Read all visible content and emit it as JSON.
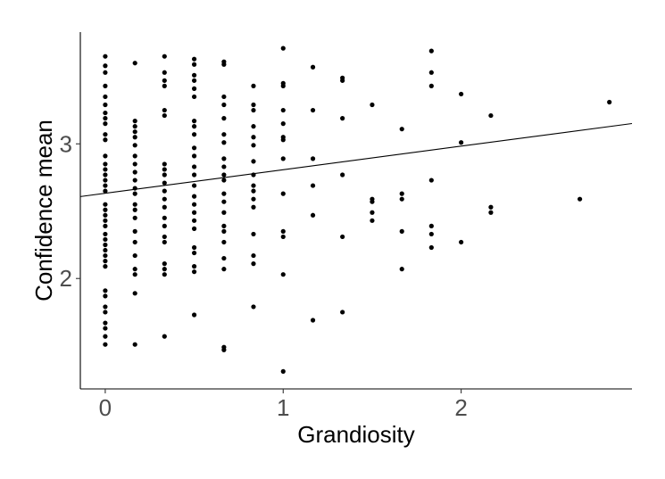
{
  "chart_data": {
    "type": "scatter",
    "title": "",
    "xlabel": "Grandiosity",
    "ylabel": "Confidence mean",
    "xlim": [
      -0.14,
      2.96
    ],
    "ylim": [
      1.18,
      3.83
    ],
    "x_ticks": [
      0,
      1,
      2
    ],
    "y_ticks": [
      2,
      3
    ],
    "x_tick_labels": [
      "0",
      "1",
      "2"
    ],
    "y_tick_labels": [
      "2",
      "3"
    ],
    "grid": false,
    "legend": "none",
    "point_color": "#000000",
    "trend_line": {
      "intercept": 2.633,
      "slope": 0.175,
      "color": "#000000"
    },
    "series": [
      {
        "values": [
          [
            0,
            3.65
          ],
          [
            0,
            3.58
          ],
          [
            0,
            3.53
          ],
          [
            0,
            3.43
          ],
          [
            0,
            3.35
          ],
          [
            0,
            3.29
          ],
          [
            0,
            3.23
          ],
          [
            0,
            3.19
          ],
          [
            0,
            3.15
          ],
          [
            0,
            3.07
          ],
          [
            0,
            3.03
          ],
          [
            0,
            2.91
          ],
          [
            0,
            2.85
          ],
          [
            0,
            2.81
          ],
          [
            0,
            2.77
          ],
          [
            0,
            2.73
          ],
          [
            0,
            2.69
          ],
          [
            0,
            2.65
          ],
          [
            0,
            2.55
          ],
          [
            0,
            2.51
          ],
          [
            0,
            2.47
          ],
          [
            0,
            2.43
          ],
          [
            0,
            2.39
          ],
          [
            0,
            2.33
          ],
          [
            0,
            2.29
          ],
          [
            0,
            2.25
          ],
          [
            0,
            2.21
          ],
          [
            0,
            2.17
          ],
          [
            0,
            2.13
          ],
          [
            0,
            2.09
          ],
          [
            0,
            1.91
          ],
          [
            0,
            1.87
          ],
          [
            0,
            1.79
          ],
          [
            0,
            1.75
          ],
          [
            0,
            1.67
          ],
          [
            0,
            1.63
          ],
          [
            0,
            1.57
          ],
          [
            0,
            1.51
          ],
          [
            0.167,
            3.6
          ],
          [
            0.167,
            3.17
          ],
          [
            0.167,
            3.13
          ],
          [
            0.167,
            3.09
          ],
          [
            0.167,
            3.05
          ],
          [
            0.167,
            2.99
          ],
          [
            0.167,
            2.91
          ],
          [
            0.167,
            2.85
          ],
          [
            0.167,
            2.79
          ],
          [
            0.167,
            2.73
          ],
          [
            0.167,
            2.67
          ],
          [
            0.167,
            2.63
          ],
          [
            0.167,
            2.55
          ],
          [
            0.167,
            2.51
          ],
          [
            0.167,
            2.45
          ],
          [
            0.167,
            2.35
          ],
          [
            0.167,
            2.27
          ],
          [
            0.167,
            2.17
          ],
          [
            0.167,
            2.07
          ],
          [
            0.167,
            2.03
          ],
          [
            0.167,
            1.89
          ],
          [
            0.167,
            1.51
          ],
          [
            0.333,
            3.65
          ],
          [
            0.333,
            3.53
          ],
          [
            0.333,
            3.47
          ],
          [
            0.333,
            3.43
          ],
          [
            0.333,
            3.25
          ],
          [
            0.333,
            3.21
          ],
          [
            0.333,
            2.85
          ],
          [
            0.333,
            2.81
          ],
          [
            0.333,
            2.77
          ],
          [
            0.333,
            2.71
          ],
          [
            0.333,
            2.65
          ],
          [
            0.333,
            2.59
          ],
          [
            0.333,
            2.53
          ],
          [
            0.333,
            2.45
          ],
          [
            0.333,
            2.39
          ],
          [
            0.333,
            2.31
          ],
          [
            0.333,
            2.27
          ],
          [
            0.333,
            2.11
          ],
          [
            0.333,
            2.07
          ],
          [
            0.333,
            2.03
          ],
          [
            0.333,
            1.57
          ],
          [
            0.5,
            3.63
          ],
          [
            0.5,
            3.59
          ],
          [
            0.5,
            3.51
          ],
          [
            0.5,
            3.47
          ],
          [
            0.5,
            3.41
          ],
          [
            0.5,
            3.35
          ],
          [
            0.5,
            3.17
          ],
          [
            0.5,
            3.13
          ],
          [
            0.5,
            3.07
          ],
          [
            0.5,
            2.97
          ],
          [
            0.5,
            2.91
          ],
          [
            0.5,
            2.83
          ],
          [
            0.5,
            2.77
          ],
          [
            0.5,
            2.69
          ],
          [
            0.5,
            2.61
          ],
          [
            0.5,
            2.55
          ],
          [
            0.5,
            2.49
          ],
          [
            0.5,
            2.43
          ],
          [
            0.5,
            2.37
          ],
          [
            0.5,
            2.23
          ],
          [
            0.5,
            2.19
          ],
          [
            0.5,
            2.09
          ],
          [
            0.5,
            2.05
          ],
          [
            0.5,
            1.73
          ],
          [
            0.667,
            3.61
          ],
          [
            0.667,
            3.59
          ],
          [
            0.667,
            3.35
          ],
          [
            0.667,
            3.29
          ],
          [
            0.667,
            3.19
          ],
          [
            0.667,
            3.07
          ],
          [
            0.667,
            3.01
          ],
          [
            0.667,
            2.89
          ],
          [
            0.667,
            2.83
          ],
          [
            0.667,
            2.77
          ],
          [
            0.667,
            2.73
          ],
          [
            0.667,
            2.63
          ],
          [
            0.667,
            2.57
          ],
          [
            0.667,
            2.49
          ],
          [
            0.667,
            2.39
          ],
          [
            0.667,
            2.35
          ],
          [
            0.667,
            2.27
          ],
          [
            0.667,
            2.15
          ],
          [
            0.667,
            2.07
          ],
          [
            0.667,
            1.49
          ],
          [
            0.667,
            1.47
          ],
          [
            0.833,
            3.43
          ],
          [
            0.833,
            3.29
          ],
          [
            0.833,
            3.25
          ],
          [
            0.833,
            3.13
          ],
          [
            0.833,
            3.05
          ],
          [
            0.833,
            2.99
          ],
          [
            0.833,
            2.87
          ],
          [
            0.833,
            2.77
          ],
          [
            0.833,
            2.69
          ],
          [
            0.833,
            2.65
          ],
          [
            0.833,
            2.59
          ],
          [
            0.833,
            2.53
          ],
          [
            0.833,
            2.33
          ],
          [
            0.833,
            2.17
          ],
          [
            0.833,
            2.11
          ],
          [
            0.833,
            1.79
          ],
          [
            1,
            3.71
          ],
          [
            1,
            3.45
          ],
          [
            1,
            3.43
          ],
          [
            1,
            3.25
          ],
          [
            1,
            3.15
          ],
          [
            1,
            3.05
          ],
          [
            1,
            3.03
          ],
          [
            1,
            2.89
          ],
          [
            1,
            2.63
          ],
          [
            1,
            2.35
          ],
          [
            1,
            2.31
          ],
          [
            1,
            2.03
          ],
          [
            1,
            1.31
          ],
          [
            1.167,
            3.57
          ],
          [
            1.167,
            3.25
          ],
          [
            1.167,
            2.89
          ],
          [
            1.167,
            2.69
          ],
          [
            1.167,
            2.47
          ],
          [
            1.167,
            1.69
          ],
          [
            1.333,
            3.49
          ],
          [
            1.333,
            3.47
          ],
          [
            1.333,
            3.19
          ],
          [
            1.333,
            2.77
          ],
          [
            1.333,
            2.31
          ],
          [
            1.333,
            1.75
          ],
          [
            1.5,
            3.29
          ],
          [
            1.5,
            2.59
          ],
          [
            1.5,
            2.57
          ],
          [
            1.5,
            2.49
          ],
          [
            1.5,
            2.43
          ],
          [
            1.667,
            3.11
          ],
          [
            1.667,
            2.63
          ],
          [
            1.667,
            2.59
          ],
          [
            1.667,
            2.35
          ],
          [
            1.667,
            2.07
          ],
          [
            1.833,
            3.69
          ],
          [
            1.833,
            3.53
          ],
          [
            1.833,
            3.43
          ],
          [
            1.833,
            2.73
          ],
          [
            1.833,
            2.39
          ],
          [
            1.833,
            2.33
          ],
          [
            1.833,
            2.23
          ],
          [
            2,
            3.37
          ],
          [
            2,
            3.01
          ],
          [
            2,
            2.27
          ],
          [
            2.167,
            3.21
          ],
          [
            2.167,
            2.53
          ],
          [
            2.167,
            2.49
          ],
          [
            2.667,
            2.59
          ],
          [
            2.833,
            3.31
          ]
        ]
      }
    ]
  }
}
